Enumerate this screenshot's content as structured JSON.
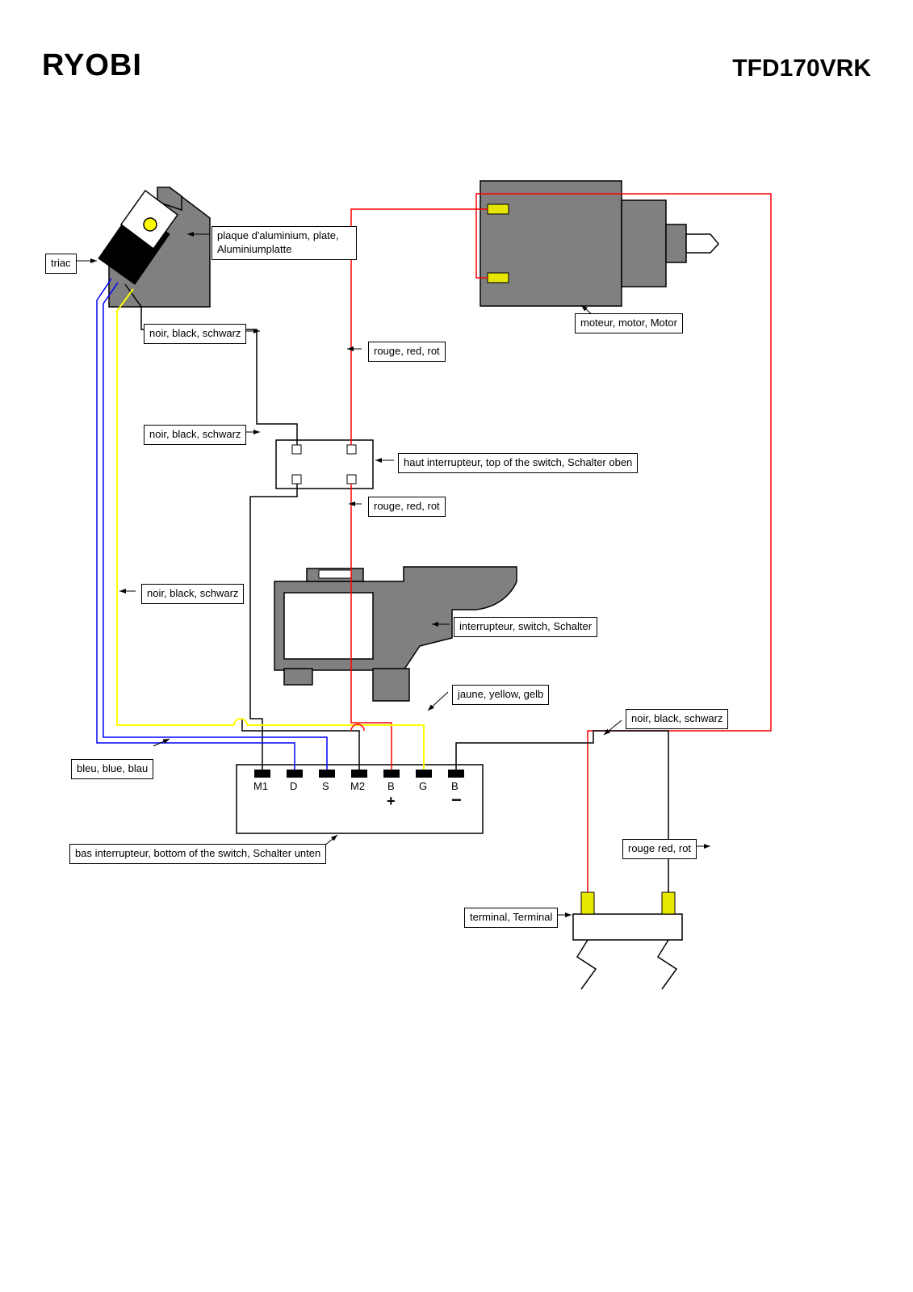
{
  "header": {
    "logo": "RYOBI",
    "model": "TFD170VRK"
  },
  "labels": {
    "triac": "triac",
    "aluminium_plate": "plaque d'aluminium, plate,\nAluminiumplatte",
    "motor": "moteur, motor, Motor",
    "black1": "noir, black, schwarz",
    "black2": "noir, black, schwarz",
    "black3": "noir, black, schwarz",
    "black4": "noir, black, schwarz",
    "red1": "rouge, red, rot",
    "red2": "rouge, red, rot",
    "red3": "rouge red, rot",
    "top_switch": "haut interrupteur, top of the switch, Schalter oben",
    "switch": "interrupteur, switch, Schalter",
    "yellow": "jaune, yellow, gelb",
    "blue": "bleu, blue, blau",
    "bottom_switch": "bas interrupteur, bottom of the switch, Schalter unten",
    "terminal": "terminal, Terminal"
  },
  "pins": {
    "m1": "M1",
    "d": "D",
    "s": "S",
    "m2": "M2",
    "bplus": "B",
    "g": "G",
    "bminus": "B",
    "plus": "+",
    "minus": "−"
  },
  "colors": {
    "red": "#ff0000",
    "blue": "#0000ff",
    "yellow": "#ffff00",
    "black": "#000000",
    "grey": "#808080",
    "yellow_contact": "#e6e600",
    "thin_line": 1.5
  }
}
